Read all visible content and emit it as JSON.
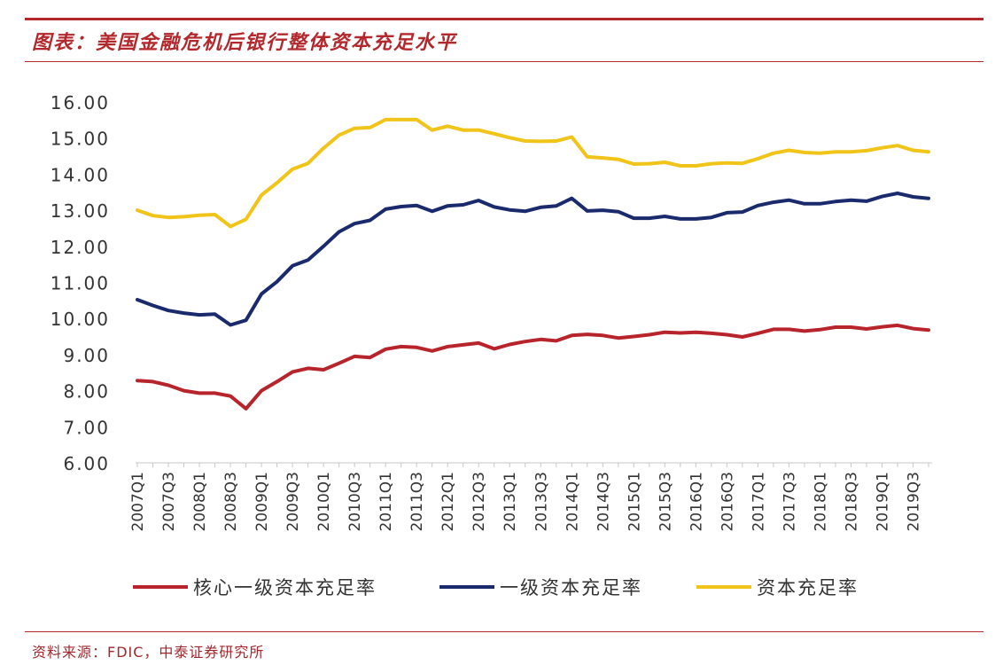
{
  "header": {
    "title": "图表：美国金融危机后银行整体资本充足水平"
  },
  "footer": {
    "source": "资料来源：FDIC，中泰证券研究所"
  },
  "chart_data": {
    "type": "line",
    "x": [
      "2007Q1",
      "2007Q2",
      "2007Q3",
      "2007Q4",
      "2008Q1",
      "2008Q2",
      "2008Q3",
      "2008Q4",
      "2009Q1",
      "2009Q2",
      "2009Q3",
      "2009Q4",
      "2010Q1",
      "2010Q2",
      "2010Q3",
      "2010Q4",
      "2011Q1",
      "2011Q2",
      "2011Q3",
      "2011Q4",
      "2012Q1",
      "2012Q2",
      "2012Q3",
      "2012Q4",
      "2013Q1",
      "2013Q2",
      "2013Q3",
      "2013Q4",
      "2014Q1",
      "2014Q2",
      "2014Q3",
      "2014Q4",
      "2015Q1",
      "2015Q2",
      "2015Q3",
      "2015Q4",
      "2016Q1",
      "2016Q2",
      "2016Q3",
      "2016Q4",
      "2017Q1",
      "2017Q2",
      "2017Q3",
      "2017Q4",
      "2018Q1",
      "2018Q2",
      "2018Q3",
      "2018Q4",
      "2019Q1",
      "2019Q2",
      "2019Q3",
      "2019Q4"
    ],
    "tick_labels": [
      "2007Q1",
      "2007Q3",
      "2008Q1",
      "2008Q3",
      "2009Q1",
      "2009Q3",
      "2010Q1",
      "2010Q3",
      "2011Q1",
      "2011Q3",
      "2012Q1",
      "2012Q3",
      "2013Q1",
      "2013Q3",
      "2014Q1",
      "2014Q3",
      "2015Q1",
      "2015Q3",
      "2016Q1",
      "2016Q3",
      "2017Q1",
      "2017Q3",
      "2018Q1",
      "2018Q3",
      "2019Q1",
      "2019Q3"
    ],
    "y_ticks": [
      "6.00",
      "7.00",
      "8.00",
      "9.00",
      "10.00",
      "11.00",
      "12.00",
      "13.00",
      "14.00",
      "15.00",
      "16.00"
    ],
    "ylim": [
      6,
      16.4
    ],
    "series": [
      {
        "name": "核心一级资本充足率",
        "color": "#b8242b",
        "values": [
          8.28,
          8.25,
          8.15,
          8.0,
          7.93,
          7.93,
          7.85,
          7.5,
          8.0,
          8.25,
          8.52,
          8.62,
          8.58,
          8.76,
          8.95,
          8.92,
          9.15,
          9.22,
          9.2,
          9.1,
          9.22,
          9.27,
          9.32,
          9.16,
          9.28,
          9.36,
          9.42,
          9.38,
          9.53,
          9.56,
          9.53,
          9.46,
          9.5,
          9.55,
          9.62,
          9.6,
          9.62,
          9.59,
          9.55,
          9.49,
          9.59,
          9.7,
          9.7,
          9.65,
          9.69,
          9.76,
          9.76,
          9.71,
          9.77,
          9.81,
          9.72,
          9.68
        ]
      },
      {
        "name": "一级资本充足率",
        "color": "#1a2a6c",
        "values": [
          10.52,
          10.36,
          10.22,
          10.15,
          10.1,
          10.12,
          9.82,
          9.95,
          10.68,
          11.02,
          11.46,
          11.62,
          12.0,
          12.4,
          12.63,
          12.72,
          13.03,
          13.1,
          13.13,
          12.97,
          13.12,
          13.15,
          13.27,
          13.09,
          13.01,
          12.97,
          13.08,
          13.12,
          13.33,
          12.98,
          13.0,
          12.96,
          12.78,
          12.78,
          12.83,
          12.76,
          12.76,
          12.8,
          12.93,
          12.95,
          13.13,
          13.22,
          13.28,
          13.18,
          13.18,
          13.24,
          13.28,
          13.25,
          13.38,
          13.47,
          13.37,
          13.33
        ]
      },
      {
        "name": "资本充足率",
        "color": "#f0c419",
        "values": [
          13.0,
          12.85,
          12.8,
          12.82,
          12.86,
          12.88,
          12.55,
          12.75,
          13.42,
          13.76,
          14.14,
          14.3,
          14.72,
          15.08,
          15.27,
          15.29,
          15.51,
          15.51,
          15.51,
          15.22,
          15.33,
          15.22,
          15.22,
          15.12,
          15.01,
          14.92,
          14.91,
          14.92,
          15.03,
          14.48,
          14.45,
          14.41,
          14.28,
          14.29,
          14.33,
          14.23,
          14.23,
          14.29,
          14.31,
          14.3,
          14.43,
          14.58,
          14.66,
          14.6,
          14.58,
          14.62,
          14.62,
          14.65,
          14.73,
          14.79,
          14.66,
          14.62
        ]
      }
    ]
  }
}
